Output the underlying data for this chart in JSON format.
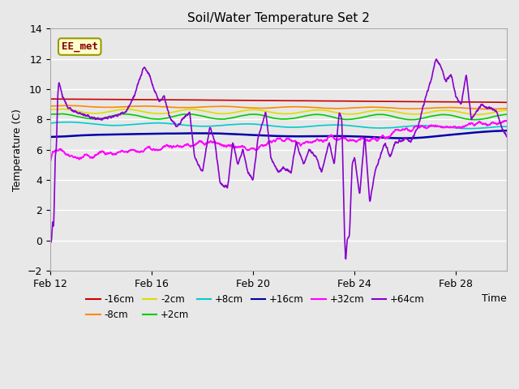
{
  "title": "Soil/Water Temperature Set 2",
  "xlabel": "Time",
  "ylabel": "Temperature (C)",
  "ylim": [
    -2,
    14
  ],
  "yticks": [
    -2,
    0,
    2,
    4,
    6,
    8,
    10,
    12,
    14
  ],
  "xlim": [
    0,
    18
  ],
  "background_color": "#e8e8e8",
  "plot_bg_color": "#e8e8e8",
  "grid_color": "#ffffff",
  "series": {
    "-16cm": {
      "color": "#cc0000",
      "lw": 1.2
    },
    "-8cm": {
      "color": "#ff8800",
      "lw": 1.2
    },
    "-2cm": {
      "color": "#dddd00",
      "lw": 1.2
    },
    "+2cm": {
      "color": "#00cc00",
      "lw": 1.2
    },
    "+8cm": {
      "color": "#00cccc",
      "lw": 1.2
    },
    "+16cm": {
      "color": "#0000aa",
      "lw": 1.8
    },
    "+32cm": {
      "color": "#ff00ff",
      "lw": 1.2
    },
    "+64cm": {
      "color": "#8800cc",
      "lw": 1.2
    }
  },
  "annotation_text": "EE_met",
  "annotation_color": "#880000",
  "annotation_bg": "#ffffcc",
  "annotation_border": "#999900",
  "x_tick_labels": [
    "Feb 12",
    "Feb 16",
    "Feb 20",
    "Feb 24",
    "Feb 28"
  ],
  "x_tick_positions": [
    0,
    4,
    8,
    12,
    16
  ]
}
